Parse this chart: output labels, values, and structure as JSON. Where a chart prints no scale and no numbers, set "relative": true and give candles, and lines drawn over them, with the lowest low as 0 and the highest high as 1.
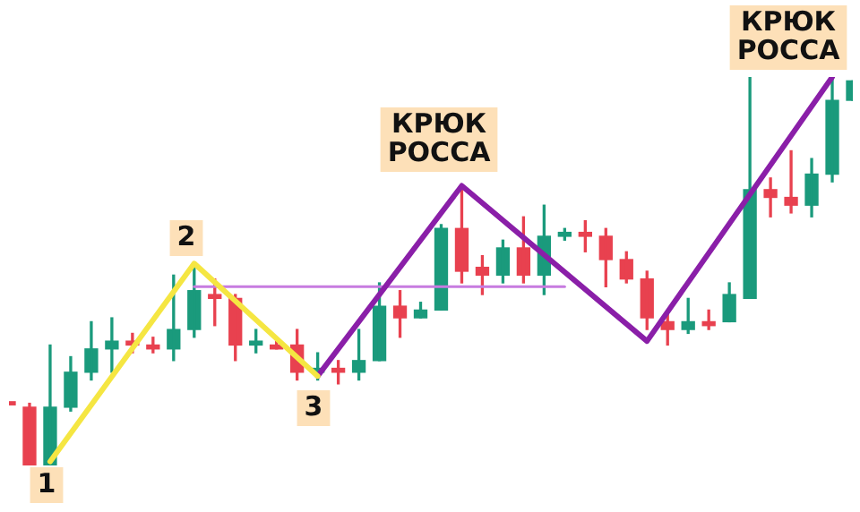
{
  "chart_data": {
    "type": "candlestick",
    "relative": true,
    "categories": [
      null,
      null,
      null,
      null,
      null,
      null,
      null,
      null,
      null,
      null,
      null,
      null,
      null,
      null,
      null,
      null,
      null,
      null,
      null,
      null,
      null,
      null,
      null,
      null,
      null,
      null,
      null,
      null,
      null,
      null,
      null,
      null,
      null,
      null,
      null,
      null,
      null,
      null,
      null,
      null,
      null,
      null
    ],
    "ohlc": [
      [
        0.16,
        0.16,
        0.16,
        0.16
      ],
      [
        0.15,
        0.16,
        0,
        0
      ],
      [
        0,
        0.31,
        0,
        0.15
      ],
      [
        0.15,
        0.28,
        0.14,
        0.24
      ],
      [
        0.24,
        0.37,
        0.22,
        0.3
      ],
      [
        0.3,
        0.38,
        0.24,
        0.32
      ],
      [
        0.32,
        0.34,
        0.29,
        0.31
      ],
      [
        0.31,
        0.33,
        0.29,
        0.3
      ],
      [
        0.3,
        0.49,
        0.27,
        0.35
      ],
      [
        0.35,
        0.51,
        0.33,
        0.45
      ],
      [
        0.44,
        0.48,
        0.36,
        0.43
      ],
      [
        0.43,
        0.44,
        0.27,
        0.31
      ],
      [
        0.31,
        0.35,
        0.29,
        0.32
      ],
      [
        0.31,
        0.32,
        0.3,
        0.3
      ],
      [
        0.31,
        0.35,
        0.22,
        0.24
      ],
      [
        0.24,
        0.29,
        0.22,
        0.25
      ],
      [
        0.25,
        0.27,
        0.21,
        0.24
      ],
      [
        0.24,
        0.35,
        0.22,
        0.27
      ],
      [
        0.27,
        0.47,
        0.27,
        0.41
      ],
      [
        0.41,
        0.45,
        0.33,
        0.38
      ],
      [
        0.38,
        0.42,
        0.38,
        0.4
      ],
      [
        0.4,
        0.62,
        0.4,
        0.61
      ],
      [
        0.61,
        0.72,
        0.47,
        0.5
      ],
      [
        0.51,
        0.54,
        0.44,
        0.49
      ],
      [
        0.49,
        0.58,
        0.47,
        0.56
      ],
      [
        0.56,
        0.64,
        0.47,
        0.49
      ],
      [
        0.49,
        0.67,
        0.44,
        0.59
      ],
      [
        0.59,
        0.61,
        0.58,
        0.6
      ],
      [
        0.6,
        0.63,
        0.55,
        0.59
      ],
      [
        0.59,
        0.61,
        0.46,
        0.53
      ],
      [
        0.53,
        0.55,
        0.47,
        0.48
      ],
      [
        0.48,
        0.5,
        0.35,
        0.38
      ],
      [
        0.37,
        0.39,
        0.31,
        0.35
      ],
      [
        0.35,
        0.43,
        0.34,
        0.37
      ],
      [
        0.37,
        0.4,
        0.35,
        0.36
      ],
      [
        0.37,
        0.47,
        0.37,
        0.44
      ],
      [
        0.43,
        1,
        0.43,
        0.71
      ],
      [
        0.71,
        0.74,
        0.64,
        0.69
      ],
      [
        0.69,
        0.81,
        0.65,
        0.67
      ],
      [
        0.67,
        0.79,
        0.64,
        0.75
      ],
      [
        0.75,
        1,
        0.73,
        0.94
      ],
      [
        0.94,
        0.99,
        0.94,
        0.99
      ]
    ],
    "colors": [
      "#e8414f",
      "#e8414f",
      "#1a9a7c",
      "#1a9a7c",
      "#1a9a7c",
      "#1a9a7c",
      "#e8414f",
      "#e8414f",
      "#1a9a7c",
      "#1a9a7c",
      "#e8414f",
      "#e8414f",
      "#1a9a7c",
      "#e8414f",
      "#e8414f",
      "#1a9a7c",
      "#e8414f",
      "#1a9a7c",
      "#1a9a7c",
      "#e8414f",
      "#1a9a7c",
      "#1a9a7c",
      "#e8414f",
      "#e8414f",
      "#1a9a7c",
      "#e8414f",
      "#1a9a7c",
      "#1a9a7c",
      "#e8414f",
      "#e8414f",
      "#e8414f",
      "#e8414f",
      "#e8414f",
      "#1a9a7c",
      "#e8414f",
      "#1a9a7c",
      "#1a9a7c",
      "#e8414f",
      "#e8414f",
      "#1a9a7c",
      "#1a9a7c",
      "#1a9a7c"
    ],
    "series": [
      {
        "type": "line",
        "color": "#f5e642",
        "values": [
          null,
          null,
          0.01,
          null,
          null,
          null,
          null,
          null,
          null,
          0.52,
          null,
          null,
          null,
          null,
          null,
          0.23,
          null,
          null,
          null,
          null,
          null,
          null,
          null,
          null,
          null,
          null,
          null,
          null,
          null,
          null,
          null,
          null,
          null,
          null,
          null,
          null,
          null,
          null,
          null,
          null,
          null,
          null
        ]
      },
      {
        "type": "line",
        "color": "#8a1fa8",
        "values": [
          null,
          null,
          null,
          null,
          null,
          null,
          null,
          null,
          null,
          null,
          null,
          null,
          null,
          null,
          null,
          0.23,
          null,
          null,
          null,
          null,
          null,
          null,
          0.72,
          null,
          null,
          null,
          null,
          null,
          null,
          null,
          null,
          0.32,
          null,
          null,
          null,
          null,
          null,
          null,
          null,
          null,
          1,
          null
        ]
      },
      {
        "type": "line",
        "color": "#c77be0",
        "values": [
          null,
          null,
          null,
          null,
          null,
          null,
          null,
          null,
          null,
          0.46,
          null,
          null,
          null,
          null,
          null,
          null,
          null,
          null,
          null,
          null,
          null,
          null,
          null,
          null,
          null,
          null,
          null,
          0.46,
          null,
          null,
          null,
          null,
          null,
          null,
          null,
          null,
          null,
          null,
          null,
          null,
          null,
          null
        ]
      }
    ],
    "annotations": [
      "1",
      "2",
      "3",
      "КРЮК\nРОССА",
      "КРЮК\nРОССА"
    ]
  }
}
